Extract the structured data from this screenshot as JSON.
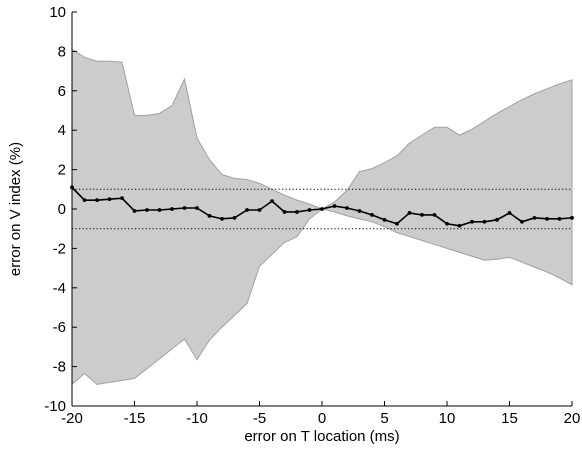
{
  "chart_data": {
    "type": "line",
    "title": "",
    "xlabel": "error on T location (ms)",
    "ylabel": "error on V index (%)",
    "xlim": [
      -20,
      20
    ],
    "ylim": [
      -10,
      10
    ],
    "x_ticks": [
      -20,
      -15,
      -10,
      -5,
      0,
      5,
      10,
      15,
      20
    ],
    "y_ticks": [
      -10,
      -8,
      -6,
      -4,
      -2,
      0,
      2,
      4,
      6,
      8,
      10
    ],
    "grid": false,
    "legend": "none",
    "colors": {
      "band_fill": "#cccccc",
      "band_edge": "#a0a0a0",
      "mean_line": "#000000",
      "reference_lines": "#000000"
    },
    "reference_lines": [
      1,
      -1
    ],
    "series": [
      {
        "type": "line",
        "x": [
          -20,
          -19,
          -18,
          -17,
          -16,
          -15,
          -14,
          -13,
          -12,
          -11,
          -10,
          -9,
          -8,
          -7,
          -6,
          -5,
          -4,
          -3,
          -2,
          -1,
          0,
          1,
          2,
          3,
          4,
          5,
          6,
          7,
          8,
          9,
          10,
          11,
          12,
          13,
          14,
          15,
          16,
          17,
          18,
          19,
          20
        ],
        "values": [
          1.1,
          0.45,
          0.45,
          0.5,
          0.55,
          -0.1,
          -0.05,
          -0.05,
          0.0,
          0.05,
          0.05,
          -0.35,
          -0.5,
          -0.45,
          -0.05,
          -0.05,
          0.4,
          -0.15,
          -0.15,
          -0.05,
          0.0,
          0.15,
          0.05,
          -0.1,
          -0.3,
          -0.55,
          -0.75,
          -0.2,
          -0.3,
          -0.3,
          -0.75,
          -0.85,
          -0.65,
          -0.65,
          -0.55,
          -0.2,
          -0.65,
          -0.45,
          -0.5,
          -0.5,
          -0.45
        ]
      },
      {
        "type": "area",
        "x": [
          -20,
          -19,
          -18,
          -17,
          -16,
          -15,
          -14,
          -13,
          -12,
          -11,
          -10,
          -9,
          -8,
          -7,
          -6,
          -5,
          -4,
          -3,
          -2,
          -1,
          0,
          1,
          2,
          3,
          4,
          5,
          6,
          7,
          8,
          9,
          10,
          11,
          12,
          13,
          14,
          15,
          16,
          17,
          18,
          19,
          20
        ],
        "upper": [
          8.1,
          7.7,
          7.5,
          7.5,
          7.45,
          4.75,
          4.75,
          4.85,
          5.25,
          6.6,
          3.6,
          2.5,
          1.75,
          1.55,
          1.5,
          1.3,
          1.0,
          0.7,
          0.45,
          0.25,
          0.0,
          0.35,
          0.95,
          1.9,
          2.05,
          2.35,
          2.7,
          3.35,
          3.75,
          4.15,
          4.15,
          3.75,
          4.05,
          4.45,
          4.85,
          5.2,
          5.55,
          5.85,
          6.1,
          6.35,
          6.55
        ],
        "lower": [
          -8.9,
          -8.35,
          -8.9,
          -8.8,
          -8.7,
          -8.6,
          -8.1,
          -7.6,
          -7.1,
          -6.6,
          -7.65,
          -6.65,
          -6.0,
          -5.4,
          -4.8,
          -2.9,
          -2.3,
          -1.7,
          -1.4,
          -0.5,
          0.0,
          -0.15,
          -0.35,
          -0.5,
          -0.65,
          -0.9,
          -1.2,
          -1.4,
          -1.6,
          -1.8,
          -2.0,
          -2.2,
          -2.4,
          -2.6,
          -2.55,
          -2.45,
          -2.7,
          -2.95,
          -3.2,
          -3.5,
          -3.85
        ]
      }
    ]
  }
}
